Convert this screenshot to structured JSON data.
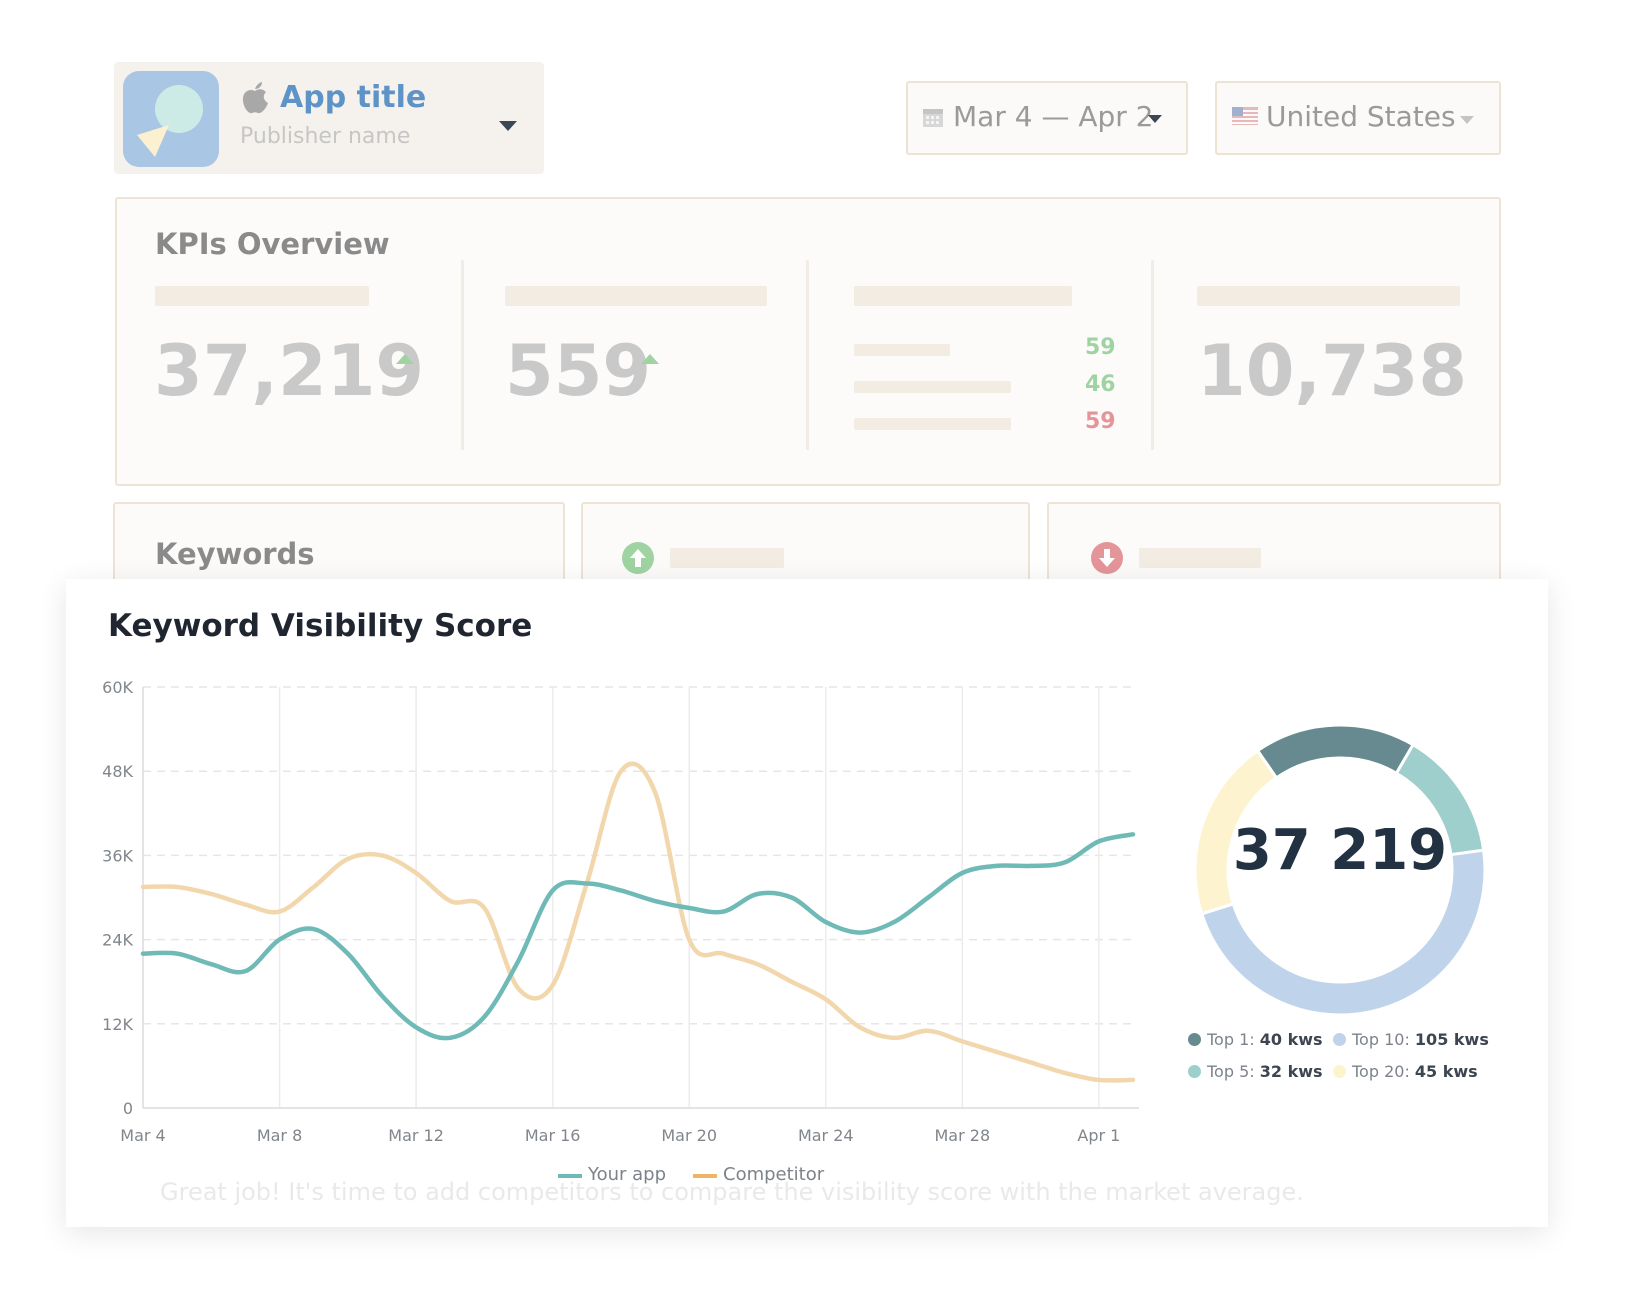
{
  "app": {
    "title": "App title",
    "publisher": "Publisher name"
  },
  "filters": {
    "date_range": "Mar 4 — Apr 2",
    "country": "United States"
  },
  "kpis": {
    "title": "KPIs Overview",
    "visibility": "37,219",
    "keywords_count": "559",
    "ranks": [
      "59",
      "46",
      "59"
    ],
    "installs": "10,738"
  },
  "keywords_panel": {
    "title": "Keywords"
  },
  "footer_message": "Great job! It's time to add competitors to compare the visibility score with the market average.",
  "colors": {
    "your_app": "#6fbab6",
    "competitor": "#f2d7ad",
    "top1": "#668a8f",
    "top5": "#9fcfcc",
    "top10": "#bfd3ea",
    "top20": "#fdf4cf",
    "rank_up": "#9fd4a2",
    "rank_down": "#e4959a"
  },
  "chart_data": [
    {
      "type": "line",
      "title": "Keyword Visibility Score",
      "x": [
        "Mar 4",
        "Mar 5",
        "Mar 6",
        "Mar 7",
        "Mar 8",
        "Mar 9",
        "Mar 10",
        "Mar 11",
        "Mar 12",
        "Mar 13",
        "Mar 14",
        "Mar 15",
        "Mar 16",
        "Mar 17",
        "Mar 18",
        "Mar 19",
        "Mar 20",
        "Mar 21",
        "Mar 22",
        "Mar 23",
        "Mar 24",
        "Mar 25",
        "Mar 26",
        "Mar 27",
        "Mar 28",
        "Mar 29",
        "Mar 30",
        "Mar 31",
        "Apr 1",
        "Apr 2"
      ],
      "x_tick_labels": [
        "Mar 4",
        "Mar 8",
        "Mar 12",
        "Mar 16",
        "Mar 20",
        "Mar 24",
        "Mar 28",
        "Apr 1"
      ],
      "y_tick_labels": [
        "0",
        "12K",
        "24K",
        "36K",
        "48K",
        "60K"
      ],
      "ylim": [
        0,
        60000
      ],
      "grid": true,
      "legend_position": "bottom",
      "series": [
        {
          "name": "Your app",
          "values": [
            22000,
            22000,
            20500,
            19500,
            24000,
            25500,
            22000,
            16000,
            11500,
            10000,
            13000,
            21000,
            31000,
            32000,
            31000,
            29500,
            28500,
            28000,
            30500,
            30000,
            26500,
            25000,
            26500,
            30000,
            33500,
            34500,
            34500,
            35000,
            38000,
            39000
          ]
        },
        {
          "name": "Competitor",
          "values": [
            31500,
            31500,
            30500,
            29000,
            28000,
            31500,
            35500,
            36000,
            33500,
            29500,
            28500,
            17000,
            17500,
            32000,
            48000,
            45000,
            24000,
            22000,
            20500,
            18000,
            15500,
            11500,
            10000,
            11000,
            9500,
            8000,
            6500,
            5000,
            4000,
            4000
          ]
        }
      ]
    },
    {
      "type": "pie",
      "center_label": "37 219",
      "categories": [
        "Top 1",
        "Top 5",
        "Top 10",
        "Top 20"
      ],
      "values": [
        40,
        32,
        105,
        45
      ],
      "legend_labels": [
        "Top 1: ",
        "Top 5: ",
        "Top 10: ",
        "Top 20: "
      ],
      "legend_values": [
        "40 kws",
        "32 kws",
        "105 kws",
        "45 kws"
      ],
      "legend_position": "bottom"
    }
  ]
}
